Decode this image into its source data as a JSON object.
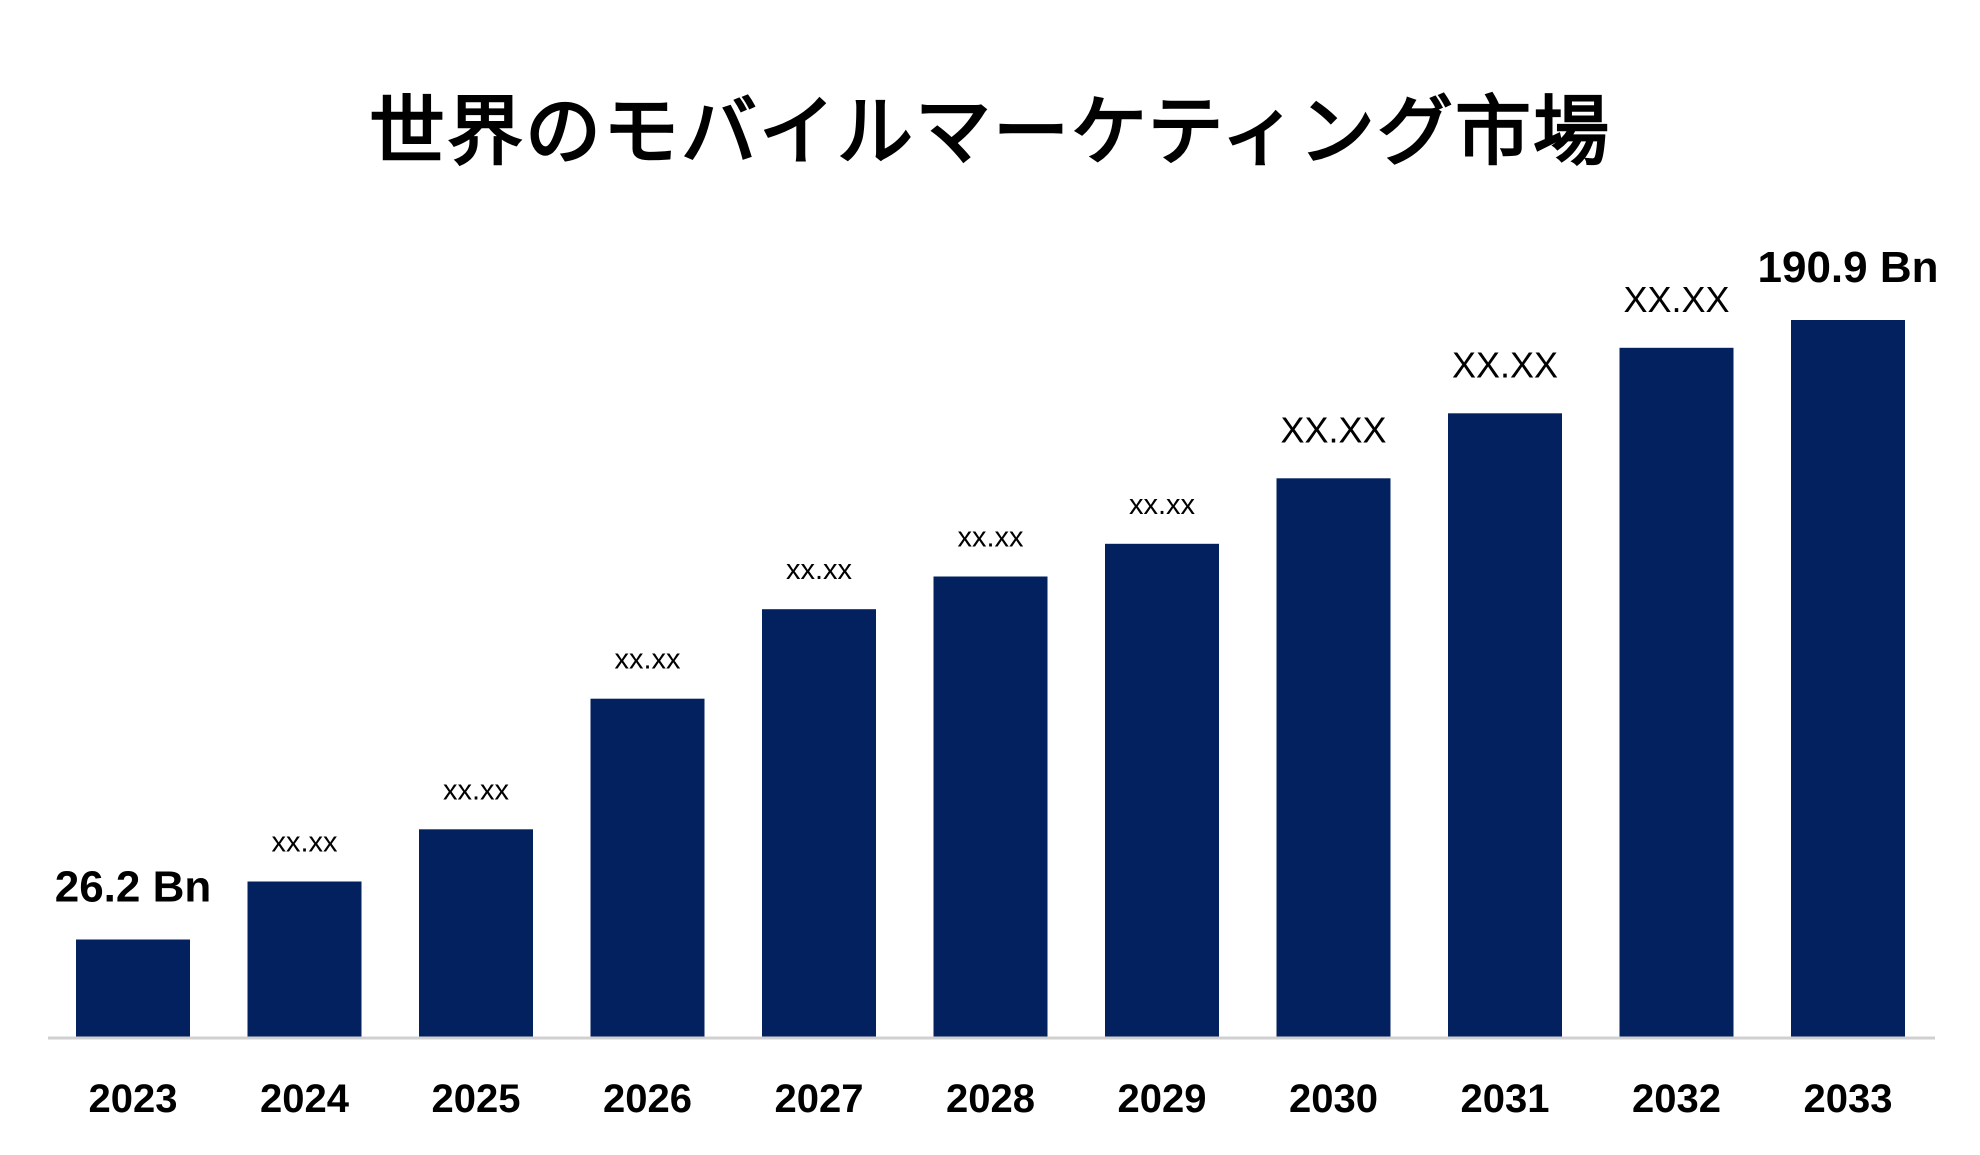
{
  "chart_data": {
    "type": "bar",
    "title": "世界のモバイルマーケティング市場",
    "xlabel": "",
    "ylabel": "",
    "categories": [
      "2023",
      "2024",
      "2025",
      "2026",
      "2027",
      "2028",
      "2029",
      "2030",
      "2031",
      "2032",
      "2033"
    ],
    "values": [
      26.2,
      41.6,
      55.5,
      90.2,
      114.0,
      122.7,
      131.4,
      148.8,
      166.1,
      183.5,
      190.9
    ],
    "data_labels": [
      "26.2 Bn",
      "xx.xx",
      "xx.xx",
      "xx.xx",
      "xx.xx",
      "xx.xx",
      "xx.xx",
      "XX.XX",
      "XX.XX",
      "XX.XX",
      "190.9 Bn"
    ],
    "ylim": [
      0,
      200
    ],
    "grid": false,
    "legend": "none",
    "bar_color": "#03215e",
    "axis_color": "#d0d0d0"
  }
}
